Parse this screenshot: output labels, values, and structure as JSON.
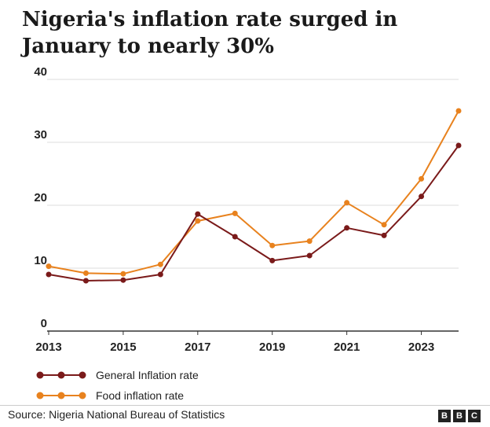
{
  "title": "Nigeria's inflation rate surged in January to nearly 30%",
  "source": "Source: Nigeria National Bureau of Statistics",
  "logo": [
    "B",
    "B",
    "C"
  ],
  "chart_data": {
    "type": "line",
    "x": [
      2013,
      2014,
      2015,
      2016,
      2017,
      2018,
      2019,
      2020,
      2021,
      2022,
      2023,
      2024
    ],
    "xticks": [
      "2013",
      "2015",
      "2017",
      "2019",
      "2021",
      "2023"
    ],
    "yticks": [
      "0",
      "10",
      "20",
      "30",
      "40"
    ],
    "ylim": [
      0,
      40
    ],
    "xlim": [
      2013,
      2024
    ],
    "grid": true,
    "legend_position": "bottom-left",
    "series": [
      {
        "name": "General Inflation rate",
        "color": "#7a1a1a",
        "values": [
          9.0,
          8.0,
          8.1,
          9.0,
          18.6,
          15.0,
          11.2,
          12.0,
          16.4,
          15.2,
          21.4,
          29.5
        ]
      },
      {
        "name": "Food  inflation rate",
        "color": "#e8821e",
        "values": [
          10.3,
          9.2,
          9.1,
          10.6,
          17.5,
          18.7,
          13.6,
          14.3,
          20.4,
          16.9,
          24.2,
          35.0
        ]
      }
    ]
  }
}
